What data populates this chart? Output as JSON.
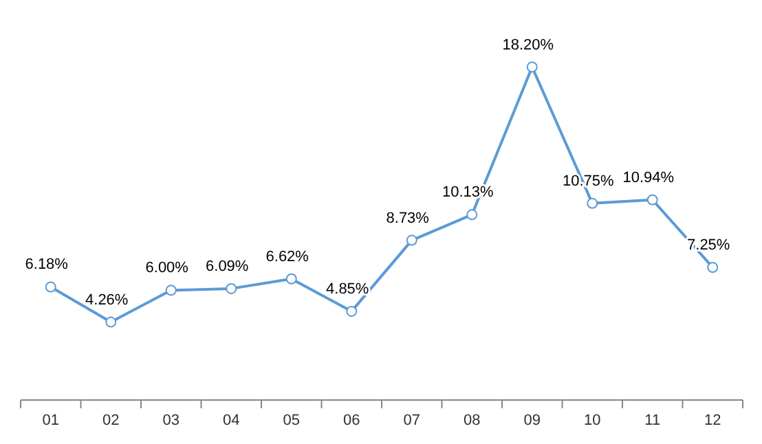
{
  "chart_data": {
    "type": "line",
    "categories": [
      "01",
      "02",
      "03",
      "04",
      "05",
      "06",
      "07",
      "08",
      "09",
      "10",
      "11",
      "12"
    ],
    "series": [
      {
        "color": "#5b9bd5",
        "values": [
          6.18,
          4.26,
          6.0,
          6.09,
          6.62,
          4.85,
          8.73,
          10.13,
          18.2,
          10.75,
          10.94,
          7.25
        ],
        "value_labels": [
          "6.18%",
          "4.26%",
          "6.00%",
          "6.09%",
          "6.62%",
          "4.85%",
          "8.73%",
          "10.13%",
          "18.20%",
          "10.75%",
          "10.94%",
          "7.25%"
        ]
      }
    ],
    "marker": "circle",
    "line_style": "solid"
  }
}
